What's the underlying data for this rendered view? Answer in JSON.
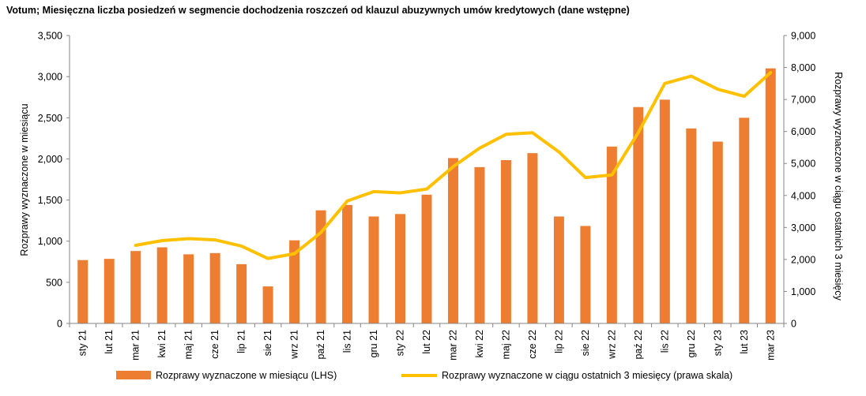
{
  "chart_data": {
    "type": "bar",
    "title": "Votum; Miesięczna liczba posiedzeń w segmencie dochodzenia roszczeń od klauzul abuzywnych umów kredytowych (dane wstępne)",
    "ylabel_left": "Rozprawy wyznaczone w miesiącu",
    "ylabel_right": "Rozprawy wyznaczone w ciągu ostatnich 3 miesięcy",
    "ylim_left": [
      0,
      3500
    ],
    "yticks_left": [
      "0",
      "500",
      "1,000",
      "1,500",
      "2,000",
      "2,500",
      "3,000",
      "3,500"
    ],
    "ylim_right": [
      0,
      9000
    ],
    "yticks_right": [
      "0",
      "1,000",
      "2,000",
      "3,000",
      "4,000",
      "5,000",
      "6,000",
      "7,000",
      "8,000",
      "9,000"
    ],
    "grid": false,
    "legend_position": "bottom",
    "categories": [
      "sty 21",
      "lut 21",
      "mar 21",
      "kwi 21",
      "maj 21",
      "cze 21",
      "lip 21",
      "sie 21",
      "wrz 21",
      "paź 21",
      "lis 21",
      "gru 21",
      "sty 22",
      "lut 22",
      "mar 22",
      "kwi 22",
      "maj 22",
      "cze 22",
      "lip 22",
      "sie 22",
      "wrz 22",
      "paź 22",
      "lis 22",
      "gru 22",
      "sty 23",
      "lut 23",
      "mar 23"
    ],
    "series": [
      {
        "name": "Rozprawy wyznaczone w miesiącu (LHS)",
        "type": "bar",
        "axis": "left",
        "color": "#ED7D31",
        "values": [
          770,
          785,
          880,
          925,
          840,
          855,
          720,
          450,
          1010,
          1375,
          1440,
          1300,
          1330,
          1565,
          2010,
          1900,
          1985,
          2070,
          1300,
          1185,
          2150,
          2630,
          2720,
          2370,
          2210,
          2500,
          3100
        ]
      },
      {
        "name": "Rozprawy wyznaczone w ciągu ostatnich 3 miesięcy (prawa skala)",
        "type": "line",
        "axis": "right",
        "color": "#FFC000",
        "values": [
          null,
          null,
          2440,
          2590,
          2650,
          2610,
          2420,
          2030,
          2180,
          2840,
          3830,
          4120,
          4080,
          4200,
          4900,
          5480,
          5910,
          5960,
          5360,
          4560,
          4640,
          5970,
          7500,
          7730,
          7320,
          7100,
          7840
        ]
      }
    ]
  }
}
